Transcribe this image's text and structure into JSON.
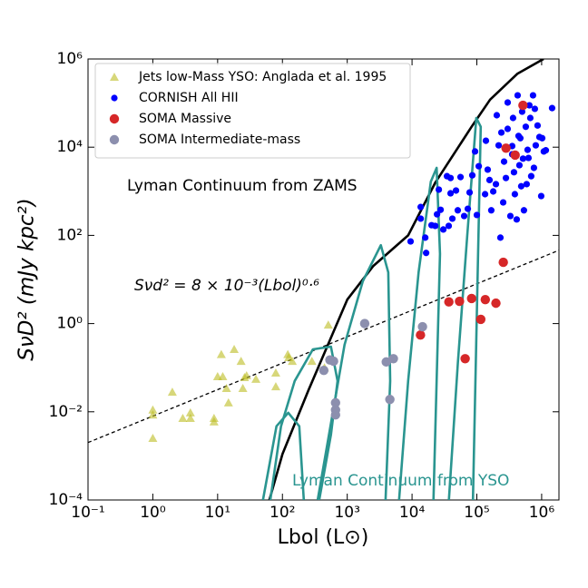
{
  "chart_data": {
    "type": "scatter",
    "xlabel": "Lbol (L⊙)",
    "ylabel": "SνD² (mJy kpc²)",
    "log_x": true,
    "log_y": true,
    "xlim": [
      0.1,
      1850000
    ],
    "ylim": [
      0.0001,
      1000000
    ],
    "xticks": [
      {
        "value": 0.1,
        "label": "10⁻¹"
      },
      {
        "value": 1,
        "label": "10⁰"
      },
      {
        "value": 10,
        "label": "10¹"
      },
      {
        "value": 100,
        "label": "10²"
      },
      {
        "value": 1000,
        "label": "10³"
      },
      {
        "value": 10000,
        "label": "10⁴"
      },
      {
        "value": 100000,
        "label": "10⁵"
      },
      {
        "value": 1000000,
        "label": "10⁶"
      }
    ],
    "yticks": [
      {
        "value": 0.0001,
        "label": "10⁻⁴"
      },
      {
        "value": 0.01,
        "label": "10⁻²"
      },
      {
        "value": 1,
        "label": "10⁰"
      },
      {
        "value": 100,
        "label": "10²"
      },
      {
        "value": 10000,
        "label": "10⁴"
      },
      {
        "value": 1000000,
        "label": "10⁶"
      }
    ],
    "legend": "upper left",
    "annotations": [
      "Lyman Continuum from ZAMS",
      "Sνd² = 8 × 10⁻³(Lbol)⁰·⁶",
      "Lyman Continuum from YSO"
    ],
    "lines": [
      {
        "color": "#000000",
        "dashed": true,
        "x": [
          0.1,
          1850000
        ],
        "values": [
          0.00201,
          46
        ]
      },
      {
        "color": "#000000",
        "dashed": false,
        "x": [
          63,
          100,
          250,
          1000,
          2500,
          8700,
          23000,
          83000,
          160000,
          420000,
          1070000
        ],
        "values": [
          0.0001,
          0.0011,
          0.03,
          3.5,
          20,
          100,
          1600,
          29000,
          120000,
          460000,
          1000000
        ]
      },
      {
        "color": "#2a9590",
        "dashed": false,
        "x": [
          65,
          95,
          155,
          295,
          560,
          710,
          560,
          370
        ],
        "values": [
          0.0001,
          0.0047,
          0.05,
          0.26,
          0.3,
          0.05,
          0.003,
          0.0001
        ]
      },
      {
        "color": "#2a9590",
        "dashed": false,
        "x": [
          50,
          81,
          123,
          182,
          214
        ],
        "values": [
          0.0001,
          0.0047,
          0.0095,
          0.0047,
          0.0001
        ]
      },
      {
        "color": "#2a9590",
        "dashed": false,
        "x": [
          350,
          910,
          1740,
          3300,
          4300,
          4600,
          3900
        ],
        "values": [
          0.0001,
          0.33,
          9.1,
          60,
          14.5,
          0.05,
          0.0001
        ]
      },
      {
        "color": "#2a9590",
        "dashed": false,
        "x": [
          6300,
          8700,
          12600,
          19500,
          24000,
          27000,
          21400
        ],
        "values": [
          0.0001,
          0.05,
          14.5,
          1660,
          3400,
          38,
          0.0001
        ]
      },
      {
        "color": "#2a9590",
        "dashed": false,
        "x": [
          37000,
          51000,
          71000,
          98000,
          115000,
          87000
        ],
        "values": [
          0.0001,
          0.13,
          98,
          46000,
          29000,
          0.0001
        ]
      }
    ],
    "series": [
      {
        "name": "Jets low-Mass YSO: Anglada et al. 1995",
        "color": "#bcbd22",
        "marker": "triangle",
        "x": [
          1,
          1,
          1,
          2,
          2.9,
          3.8,
          3.8,
          8.8,
          8.8,
          10,
          11.4,
          12,
          13.7,
          14.7,
          18,
          23,
          24.5,
          26,
          28,
          39,
          79,
          79,
          121,
          125,
          142,
          510,
          445,
          285
        ],
        "values": [
          0.011,
          0.0085,
          0.0025,
          0.028,
          0.0071,
          0.0095,
          0.0071,
          0.0071,
          0.0059,
          0.063,
          0.2,
          0.063,
          0.034,
          0.016,
          0.26,
          0.14,
          0.034,
          0.06,
          0.066,
          0.055,
          0.076,
          0.037,
          0.2,
          0.17,
          0.14,
          0.93,
          0.1,
          0.14
        ]
      },
      {
        "name": "CORNISH All HII",
        "color": "#0000ff",
        "marker": "dot",
        "x": [
          9500,
          13600,
          13600,
          16000,
          16500,
          20000,
          22800,
          24300,
          25900,
          27600,
          30400,
          34600,
          36800,
          39300,
          39300,
          41900,
          47700,
          50800,
          56000,
          63700,
          72500,
          77300,
          85100,
          93800,
          100000,
          107000,
          134000,
          138000,
          147000,
          157000,
          167000,
          179000,
          197000,
          203000,
          217000,
          231000,
          239000,
          255000,
          263000,
          281000,
          299000,
          299000,
          329000,
          351000,
          362000,
          374000,
          386000,
          412000,
          426000,
          454000,
          469000,
          484000,
          500000,
          533000,
          569000,
          607000,
          627000,
          647000,
          690000,
          736000,
          760000,
          811000,
          865000,
          923000,
          984000,
          1020000,
          1080000,
          1160000,
          1450000,
          440000,
          351000,
          668000,
          785000,
          516000,
          587000
        ],
        "values": [
          73,
          440,
          240,
          89,
          40,
          170,
          164,
          300,
          1090,
          380,
          136,
          2200,
          164,
          900,
          2000,
          240,
          1040,
          370,
          2100,
          275,
          400,
          940,
          2300,
          8000,
          290,
          3700,
          860,
          14000,
          3100,
          1800,
          370,
          990,
          1450,
          53000,
          11000,
          89,
          21500,
          560,
          4700,
          2000,
          26000,
          103000,
          275,
          10600,
          46000,
          2700,
          860,
          230,
          150000,
          3900,
          16000,
          1300,
          64000,
          370,
          29000,
          8700,
          5700,
          89000,
          2200,
          150000,
          3400,
          11000,
          31000,
          17000,
          780,
          16000,
          8000,
          8500,
          77000,
          18000,
          6900,
          46000,
          74000,
          5500,
          1450
        ]
      },
      {
        "name": "SOMA Massive",
        "color": "#d62728",
        "marker": "circle",
        "x": [
          13500,
          37000,
          54000,
          83000,
          115000,
          135000,
          197000,
          66000,
          256000,
          282000,
          390000,
          515000
        ],
        "values": [
          0.55,
          3.1,
          3.2,
          3.7,
          1.25,
          3.5,
          2.9,
          0.16,
          24.5,
          9500,
          6600,
          89000
        ]
      },
      {
        "name": "SOMA Intermediate-mass",
        "color": "#8c8fae",
        "marker": "circle",
        "x": [
          435,
          540,
          615,
          660,
          660,
          660,
          1860,
          4000,
          4550,
          5150,
          14500
        ],
        "values": [
          0.087,
          0.15,
          0.14,
          0.016,
          0.011,
          0.0085,
          1.0,
          0.135,
          0.019,
          0.16,
          0.85
        ]
      }
    ]
  }
}
